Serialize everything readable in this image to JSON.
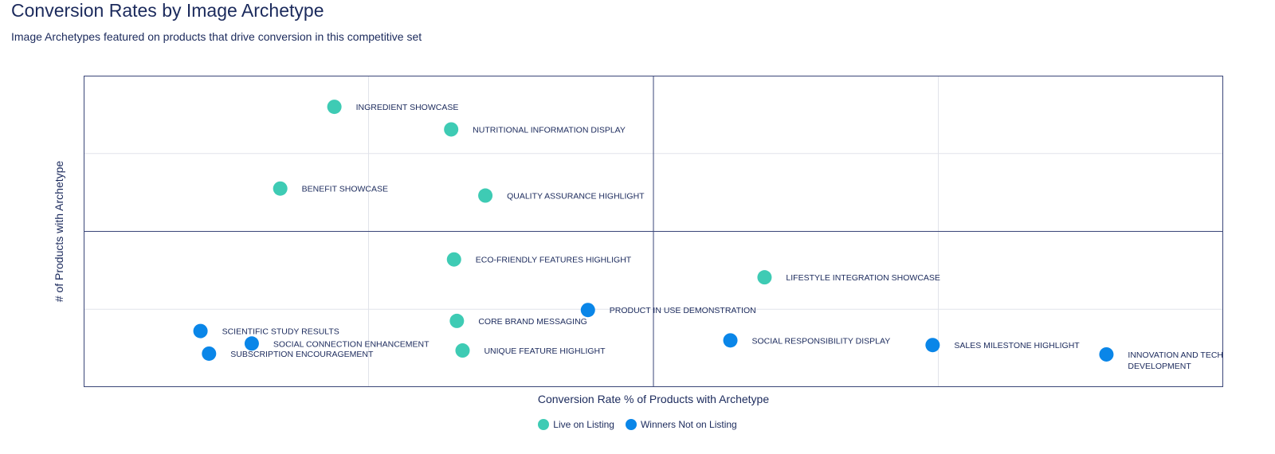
{
  "header": {
    "title": "Conversion Rates by Image Archetype",
    "subtitle": "Image Archetypes featured on products that drive conversion in this competitive set"
  },
  "colors": {
    "live": "#3ecbb4",
    "winners": "#0a86e8",
    "frame": "#3a4678",
    "grid": "#e1e3ea"
  },
  "chart_data": {
    "type": "scatter",
    "title": "Conversion Rates by Image Archetype",
    "subtitle": "Image Archetypes featured on products that drive conversion in this competitive set",
    "xlabel": "Conversion Rate % of Products with Archetype",
    "ylabel": "# of Products with Archetype",
    "xlim": [
      0,
      4
    ],
    "ylim": [
      0,
      4
    ],
    "grid": true,
    "quadrant_lines": {
      "x": 2,
      "y": 2
    },
    "legend_position": "bottom-center",
    "series": [
      {
        "name": "Live on Listing",
        "color": "#3ecbb4",
        "points": [
          {
            "label": "INGREDIENT SHOWCASE",
            "x": 0.88,
            "y": 3.6
          },
          {
            "label": "NUTRITIONAL INFORMATION DISPLAY",
            "x": 1.29,
            "y": 3.31
          },
          {
            "label": "BENEFIT SHOWCASE",
            "x": 0.69,
            "y": 2.55
          },
          {
            "label": "QUALITY ASSURANCE HIGHLIGHT",
            "x": 1.41,
            "y": 2.46
          },
          {
            "label": "ECO-FRIENDLY FEATURES HIGHLIGHT",
            "x": 1.3,
            "y": 1.64
          },
          {
            "label": "LIFESTYLE INTEGRATION SHOWCASE",
            "x": 2.39,
            "y": 1.41
          },
          {
            "label": "CORE BRAND MESSAGING",
            "x": 1.31,
            "y": 0.85
          },
          {
            "label": "UNIQUE FEATURE HIGHLIGHT",
            "x": 1.33,
            "y": 0.47
          }
        ]
      },
      {
        "name": "Winners Not on Listing",
        "color": "#0a86e8",
        "points": [
          {
            "label": "PRODUCT IN USE DEMONSTRATION",
            "x": 1.77,
            "y": 0.99
          },
          {
            "label": "SCIENTIFIC STUDY RESULTS",
            "x": 0.41,
            "y": 0.72
          },
          {
            "label": "SOCIAL CONNECTION ENHANCEMENT",
            "x": 0.59,
            "y": 0.56
          },
          {
            "label": "SUBSCRIPTION ENCOURAGEMENT",
            "x": 0.44,
            "y": 0.43
          },
          {
            "label": "SOCIAL RESPONSIBILITY DISPLAY",
            "x": 2.27,
            "y": 0.6
          },
          {
            "label": "SALES MILESTONE HIGHLIGHT",
            "x": 2.98,
            "y": 0.54
          },
          {
            "label": "INNOVATION AND TECH DEVELOPMENT",
            "x": 3.59,
            "y": 0.42
          }
        ]
      }
    ]
  }
}
